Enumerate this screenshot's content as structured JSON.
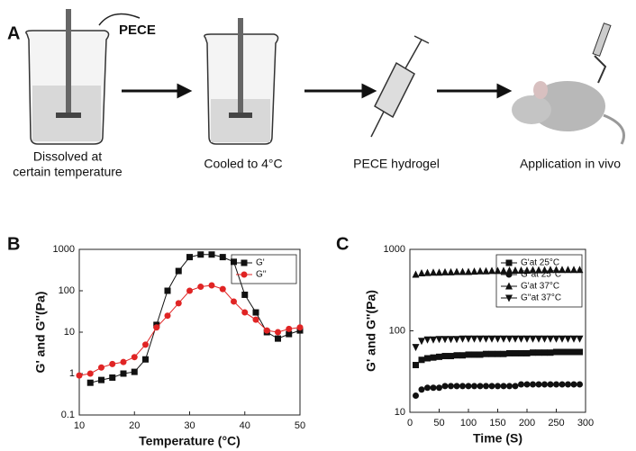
{
  "panel_a": {
    "label": "A",
    "reagent": "PECE",
    "steps": [
      [
        "Dissolved at",
        "certain temperature"
      ],
      [
        "Cooled to 4°C"
      ],
      [
        "PECE hydrogel"
      ],
      [
        "Application in vivo"
      ]
    ]
  },
  "chart_data": [
    {
      "type": "line",
      "panel": "B",
      "ylabel": "G' and G''(Pa)",
      "xlabel": "Temperature (°C)",
      "log_y": true,
      "xlim": [
        10,
        50
      ],
      "xticks": [
        10,
        20,
        30,
        40,
        50
      ],
      "ylim": [
        0.1,
        1000
      ],
      "yticks": [
        0.1,
        1,
        10,
        100,
        1000
      ],
      "legend": "upper right",
      "series": [
        {
          "name": "G'",
          "color": "#111111",
          "marker": "square",
          "x": [
            12,
            14,
            16,
            18,
            20,
            22,
            24,
            26,
            28,
            30,
            32,
            34,
            36,
            38,
            40,
            42,
            44,
            46,
            48,
            50
          ],
          "values": [
            0.6,
            0.7,
            0.8,
            1.0,
            1.1,
            2.2,
            15,
            100,
            300,
            650,
            750,
            750,
            650,
            500,
            80,
            30,
            10,
            7,
            9,
            11
          ]
        },
        {
          "name": "G''",
          "color": "#e02424",
          "marker": "circle",
          "x": [
            10,
            12,
            14,
            16,
            18,
            20,
            22,
            24,
            26,
            28,
            30,
            32,
            34,
            36,
            38,
            40,
            42,
            44,
            46,
            48,
            50
          ],
          "values": [
            0.9,
            1.0,
            1.4,
            1.7,
            1.9,
            2.5,
            5,
            13,
            25,
            50,
            100,
            125,
            135,
            110,
            55,
            30,
            20,
            11,
            10,
            12,
            13
          ]
        }
      ]
    },
    {
      "type": "scatter",
      "panel": "C",
      "ylabel": "G' and G''(Pa)",
      "xlabel": "Time (S)",
      "log_y": true,
      "xlim": [
        0,
        300
      ],
      "xticks": [
        0,
        50,
        100,
        150,
        200,
        250,
        300
      ],
      "ylim": [
        10,
        1000
      ],
      "yticks": [
        10,
        100,
        1000
      ],
      "legend": "upper right",
      "series": [
        {
          "name": "G'at 25°C",
          "color": "#111111",
          "marker": "square",
          "x": [
            10,
            20,
            30,
            40,
            50,
            60,
            70,
            80,
            90,
            100,
            110,
            120,
            130,
            140,
            150,
            160,
            170,
            180,
            190,
            200,
            210,
            220,
            230,
            240,
            250,
            260,
            270,
            280,
            290
          ],
          "values": [
            38,
            44,
            46,
            47,
            48,
            49,
            49,
            50,
            50,
            51,
            51,
            51,
            52,
            52,
            52,
            52,
            53,
            53,
            53,
            53,
            54,
            54,
            54,
            54,
            55,
            55,
            55,
            55,
            55
          ]
        },
        {
          "name": "G''at 25°C",
          "color": "#111111",
          "marker": "circle",
          "x": [
            10,
            20,
            30,
            40,
            50,
            60,
            70,
            80,
            90,
            100,
            110,
            120,
            130,
            140,
            150,
            160,
            170,
            180,
            190,
            200,
            210,
            220,
            230,
            240,
            250,
            260,
            270,
            280,
            290
          ],
          "values": [
            16,
            19,
            20,
            20,
            20,
            21,
            21,
            21,
            21,
            21,
            21,
            21,
            21,
            21,
            21,
            21,
            21,
            21,
            22,
            22,
            22,
            22,
            22,
            22,
            22,
            22,
            22,
            22,
            22
          ]
        },
        {
          "name": "G'at 37°C",
          "color": "#111111",
          "marker": "triangle",
          "x": [
            10,
            20,
            30,
            40,
            50,
            60,
            70,
            80,
            90,
            100,
            110,
            120,
            130,
            140,
            150,
            160,
            170,
            180,
            190,
            200,
            210,
            220,
            230,
            240,
            250,
            260,
            270,
            280,
            290
          ],
          "values": [
            490,
            510,
            515,
            520,
            520,
            525,
            525,
            530,
            530,
            530,
            535,
            540,
            540,
            545,
            545,
            545,
            550,
            550,
            550,
            550,
            555,
            555,
            555,
            560,
            560,
            560,
            560,
            560,
            560
          ]
        },
        {
          "name": "G''at 37°C",
          "color": "#111111",
          "marker": "triangle-down",
          "x": [
            10,
            20,
            30,
            40,
            50,
            60,
            70,
            80,
            90,
            100,
            110,
            120,
            130,
            140,
            150,
            160,
            170,
            180,
            190,
            200,
            210,
            220,
            230,
            240,
            250,
            260,
            270,
            280,
            290
          ],
          "values": [
            63,
            75,
            78,
            78,
            79,
            79,
            79,
            79,
            80,
            80,
            80,
            80,
            80,
            80,
            80,
            80,
            80,
            80,
            80,
            80,
            80,
            80,
            80,
            80,
            80,
            80,
            80,
            80,
            80
          ]
        }
      ]
    }
  ]
}
